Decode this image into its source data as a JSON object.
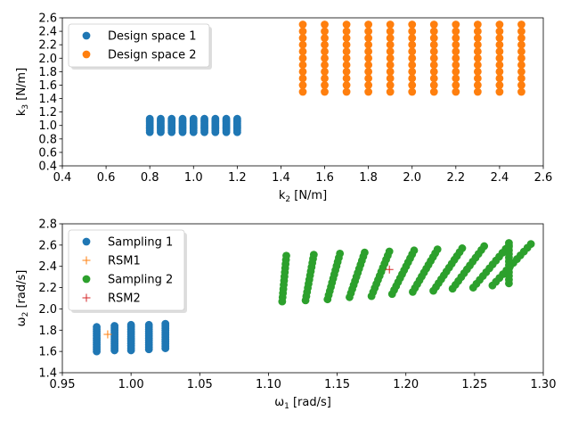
{
  "chart_data": [
    {
      "type": "scatter",
      "xlabel_main": "k",
      "xlabel_sub": "2",
      "xlabel_unit": " [N/m]",
      "ylabel_main": "k",
      "ylabel_sub": "3",
      "ylabel_unit": " [N/m]",
      "xlim": [
        0.4,
        2.6
      ],
      "ylim": [
        0.4,
        2.6
      ],
      "xticks": [
        0.4,
        0.6,
        0.8,
        1.0,
        1.2,
        1.4,
        1.6,
        1.8,
        2.0,
        2.2,
        2.4,
        2.6
      ],
      "yticks": [
        0.4,
        0.6,
        0.8,
        1.0,
        1.2,
        1.4,
        1.6,
        1.8,
        2.0,
        2.2,
        2.4,
        2.6
      ],
      "grid": false,
      "legend_location": "upper-left",
      "series": [
        {
          "name": "Design space 1",
          "marker": "circle",
          "color": "#1f77b4",
          "x_grid": [
            0.8,
            0.85,
            0.9,
            0.95,
            1.0,
            1.05,
            1.1,
            1.15,
            1.2
          ],
          "y_grid": [
            0.9,
            0.925,
            0.95,
            0.975,
            1.0,
            1.025,
            1.05,
            1.075,
            1.1
          ]
        },
        {
          "name": "Design space 2",
          "marker": "circle",
          "color": "#ff7f0e",
          "x_grid": [
            1.5,
            1.6,
            1.7,
            1.8,
            1.9,
            2.0,
            2.1,
            2.2,
            2.3,
            2.4,
            2.5
          ],
          "y_grid": [
            1.5,
            1.6,
            1.7,
            1.8,
            1.9,
            2.0,
            2.1,
            2.2,
            2.3,
            2.4,
            2.5
          ]
        }
      ]
    },
    {
      "type": "scatter",
      "xlabel_main": "ω",
      "xlabel_sub": "1",
      "xlabel_unit": " [rad/s]",
      "ylabel_main": "ω",
      "ylabel_sub": "2",
      "ylabel_unit": " [rad/s]",
      "xlim": [
        0.95,
        1.3
      ],
      "ylim": [
        1.4,
        2.8
      ],
      "xticks": [
        0.95,
        1.0,
        1.05,
        1.1,
        1.15,
        1.2,
        1.25,
        1.3
      ],
      "yticks": [
        1.4,
        1.6,
        1.8,
        2.0,
        2.2,
        2.4,
        2.6,
        2.8
      ],
      "grid": false,
      "legend_location": "upper-left",
      "series": [
        {
          "name": "Sampling 1",
          "marker": "circle",
          "color": "#1f77b4",
          "columns": [
            {
              "x": 0.975,
              "y0": 1.6,
              "y1": 1.83,
              "dx": 0.0
            },
            {
              "x": 0.988,
              "y0": 1.61,
              "y1": 1.84,
              "dx": 0.0
            },
            {
              "x": 1.0,
              "y0": 1.61,
              "y1": 1.85,
              "dx": 0.0
            },
            {
              "x": 1.013,
              "y0": 1.62,
              "y1": 1.85,
              "dx": 0.0
            },
            {
              "x": 1.025,
              "y0": 1.63,
              "y1": 1.86,
              "dx": 0.0
            }
          ]
        },
        {
          "name": "RSM1",
          "marker": "plus",
          "color": "#ff7f0e",
          "points": [
            [
              0.983,
              1.76
            ]
          ]
        },
        {
          "name": "Sampling 2",
          "marker": "circle",
          "color": "#2ca02c",
          "columns": [
            {
              "x": 1.11,
              "y0": 2.07,
              "y1": 2.5,
              "dx": 0.003
            },
            {
              "x": 1.127,
              "y0": 2.08,
              "y1": 2.51,
              "dx": 0.006
            },
            {
              "x": 1.143,
              "y0": 2.09,
              "y1": 2.52,
              "dx": 0.009
            },
            {
              "x": 1.159,
              "y0": 2.11,
              "y1": 2.53,
              "dx": 0.011
            },
            {
              "x": 1.175,
              "y0": 2.12,
              "y1": 2.54,
              "dx": 0.013
            },
            {
              "x": 1.19,
              "y0": 2.14,
              "y1": 2.55,
              "dx": 0.016
            },
            {
              "x": 1.205,
              "y0": 2.16,
              "y1": 2.56,
              "dx": 0.018
            },
            {
              "x": 1.22,
              "y0": 2.17,
              "y1": 2.57,
              "dx": 0.021
            },
            {
              "x": 1.234,
              "y0": 2.19,
              "y1": 2.59,
              "dx": 0.023
            },
            {
              "x": 1.249,
              "y0": 2.2,
              "y1": 2.6,
              "dx": 0.026
            },
            {
              "x": 1.263,
              "y0": 2.22,
              "y1": 2.61,
              "dx": 0.028
            },
            {
              "x": 1.275,
              "y0": 2.24,
              "y1": 2.62,
              "dx": 0.0
            }
          ]
        },
        {
          "name": "RSM2",
          "marker": "plus",
          "color": "#d62728",
          "points": [
            [
              1.188,
              2.37
            ]
          ]
        }
      ]
    }
  ]
}
